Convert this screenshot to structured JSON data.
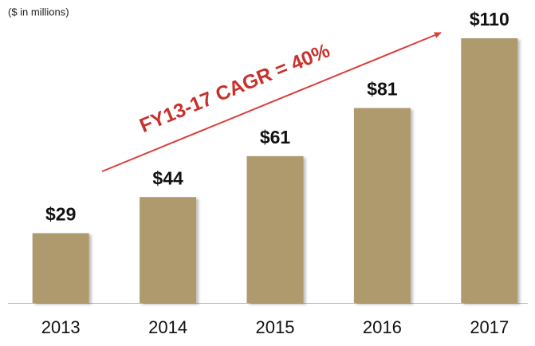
{
  "chart_data": {
    "type": "bar",
    "subtitle": "($ in millions)",
    "annotation": "FY13-17 CAGR = 40%",
    "categories": [
      "2013",
      "2014",
      "2015",
      "2016",
      "2017"
    ],
    "values": [
      29,
      44,
      61,
      81,
      110
    ],
    "value_labels": [
      "$29",
      "$44",
      "$61",
      "$81",
      "$110"
    ],
    "color": "#ae9a6c"
  }
}
